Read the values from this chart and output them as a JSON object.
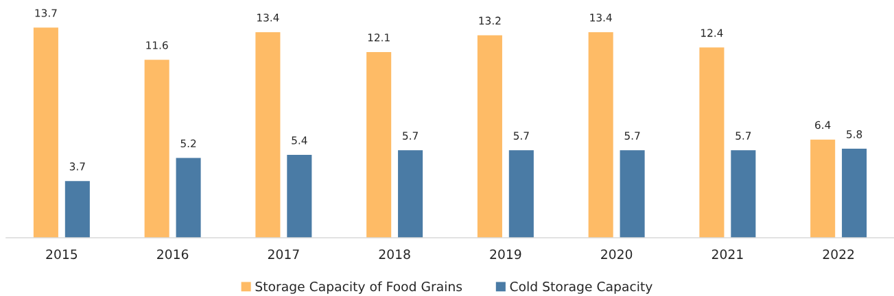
{
  "chart_data": {
    "type": "bar",
    "categories": [
      "2015",
      "2016",
      "2017",
      "2018",
      "2019",
      "2020",
      "2021",
      "2022"
    ],
    "series": [
      {
        "name": "Storage Capacity of Food Grains",
        "color": "#febb66",
        "values": [
          13.7,
          11.6,
          13.4,
          12.1,
          13.2,
          13.4,
          12.4,
          6.4
        ]
      },
      {
        "name": "Cold Storage Capacity",
        "color": "#4a7ba5",
        "values": [
          3.7,
          5.2,
          5.4,
          5.7,
          5.7,
          5.7,
          5.7,
          5.8
        ]
      }
    ],
    "data_labels": true,
    "legend": "bottom",
    "grid": false
  }
}
